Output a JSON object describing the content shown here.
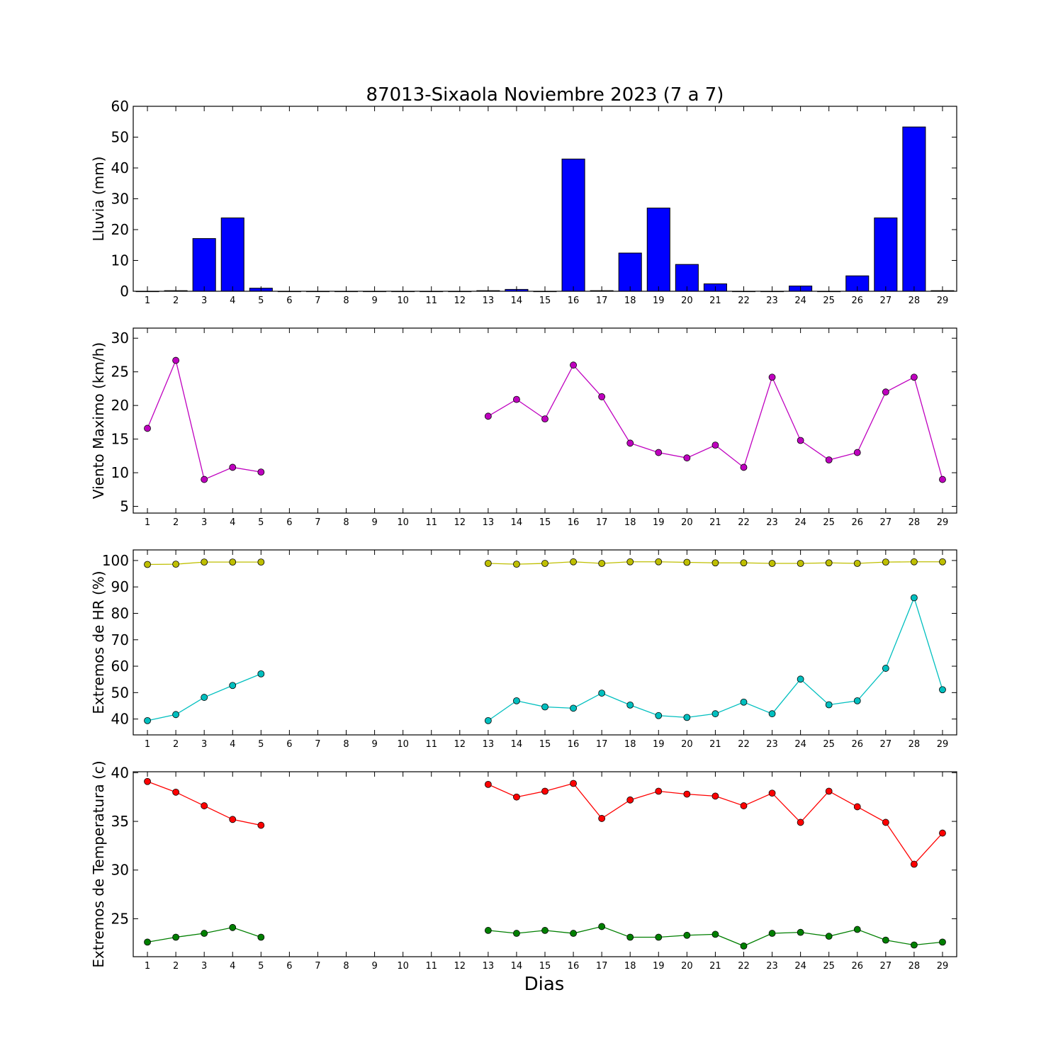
{
  "chart_data": [
    {
      "type": "bar",
      "title": "87013-Sixaola Noviembre 2023  (7 a 7)",
      "ylabel": "Lluvia (mm)",
      "xlabel": "",
      "x": [
        1,
        2,
        3,
        4,
        5,
        6,
        7,
        8,
        9,
        10,
        11,
        12,
        13,
        14,
        15,
        16,
        17,
        18,
        19,
        20,
        21,
        22,
        23,
        24,
        25,
        26,
        27,
        28,
        29
      ],
      "ylim": [
        0,
        60
      ],
      "yticks": [
        0,
        10,
        20,
        30,
        40,
        50,
        60
      ],
      "xlim": [
        0.5,
        29.5
      ],
      "grid": false,
      "colors": {
        "bar": "#0000ff"
      },
      "series": [
        {
          "values": [
            0,
            0.2,
            17.1,
            23.8,
            1.0,
            0,
            0,
            0,
            0,
            0,
            0,
            0,
            0.2,
            0.6,
            0,
            42.9,
            0.2,
            12.4,
            27.0,
            8.7,
            2.4,
            0,
            0,
            1.7,
            0,
            5.0,
            23.8,
            53.3,
            0.2
          ]
        }
      ]
    },
    {
      "type": "line",
      "ylabel": "Viento Maximo (km/h)",
      "xlabel": "",
      "x": [
        1,
        2,
        3,
        4,
        5,
        6,
        7,
        8,
        9,
        10,
        11,
        12,
        13,
        14,
        15,
        16,
        17,
        18,
        19,
        20,
        21,
        22,
        23,
        24,
        25,
        26,
        27,
        28,
        29
      ],
      "ylim": [
        4,
        31.5
      ],
      "yticks": [
        5,
        10,
        15,
        20,
        25,
        30
      ],
      "xlim": [
        0.5,
        29.5
      ],
      "grid": false,
      "series": [
        {
          "color": "#bf00bf",
          "values": [
            16.6,
            26.7,
            9.0,
            10.8,
            10.1,
            null,
            null,
            null,
            null,
            null,
            null,
            null,
            18.4,
            20.9,
            18.0,
            26.0,
            21.3,
            14.4,
            13.0,
            12.2,
            14.1,
            10.8,
            24.2,
            14.8,
            11.9,
            13.0,
            22.0,
            24.2,
            9.0
          ]
        }
      ]
    },
    {
      "type": "line",
      "ylabel": "Extremos de HR (%)",
      "xlabel": "",
      "x": [
        1,
        2,
        3,
        4,
        5,
        6,
        7,
        8,
        9,
        10,
        11,
        12,
        13,
        14,
        15,
        16,
        17,
        18,
        19,
        20,
        21,
        22,
        23,
        24,
        25,
        26,
        27,
        28,
        29
      ],
      "ylim": [
        34,
        104
      ],
      "yticks": [
        40,
        50,
        60,
        70,
        80,
        90,
        100
      ],
      "xlim": [
        0.5,
        29.5
      ],
      "grid": false,
      "series": [
        {
          "color": "#bfbf00",
          "values": [
            98.5,
            98.6,
            99.4,
            99.4,
            99.4,
            null,
            null,
            null,
            null,
            null,
            null,
            null,
            98.9,
            98.6,
            98.9,
            99.5,
            98.9,
            99.5,
            99.5,
            99.3,
            99.1,
            99.1,
            98.9,
            98.9,
            99.1,
            98.9,
            99.4,
            99.5,
            99.5
          ]
        },
        {
          "color": "#00bfbf",
          "values": [
            39.4,
            41.7,
            48.2,
            52.7,
            57.1,
            null,
            null,
            null,
            null,
            null,
            null,
            null,
            39.4,
            46.9,
            44.6,
            44.1,
            49.8,
            45.3,
            41.3,
            40.6,
            42.0,
            46.4,
            42.0,
            55.1,
            45.4,
            46.9,
            59.2,
            85.9,
            51.1
          ]
        }
      ]
    },
    {
      "type": "line",
      "ylabel": "Extremos de Temperatura (c)",
      "xlabel": "Dias",
      "x": [
        1,
        2,
        3,
        4,
        5,
        6,
        7,
        8,
        9,
        10,
        11,
        12,
        13,
        14,
        15,
        16,
        17,
        18,
        19,
        20,
        21,
        22,
        23,
        24,
        25,
        26,
        27,
        28,
        29
      ],
      "xticks": [
        1,
        2,
        3,
        4,
        5,
        6,
        7,
        8,
        9,
        10,
        11,
        12,
        13,
        14,
        15,
        16,
        17,
        18,
        19,
        20,
        21,
        22,
        23,
        24,
        25,
        26,
        27,
        28,
        29
      ],
      "ylim": [
        21.1,
        40.1
      ],
      "yticks": [
        25,
        30,
        35,
        40
      ],
      "xlim": [
        0.5,
        29.5
      ],
      "grid": false,
      "series": [
        {
          "color": "#ff0000",
          "values": [
            39.1,
            38.0,
            36.6,
            35.2,
            34.6,
            null,
            null,
            null,
            null,
            null,
            null,
            null,
            38.8,
            37.5,
            38.1,
            38.9,
            35.3,
            37.2,
            38.1,
            37.8,
            37.6,
            36.6,
            37.9,
            34.9,
            38.1,
            36.5,
            34.9,
            30.6,
            33.8
          ]
        },
        {
          "color": "#007f00",
          "values": [
            22.6,
            23.1,
            23.5,
            24.1,
            23.1,
            null,
            null,
            null,
            null,
            null,
            null,
            null,
            23.8,
            23.5,
            23.8,
            23.5,
            24.2,
            23.1,
            23.1,
            23.3,
            23.4,
            22.2,
            23.5,
            23.6,
            23.2,
            23.9,
            22.8,
            22.3,
            22.6
          ]
        }
      ]
    }
  ]
}
